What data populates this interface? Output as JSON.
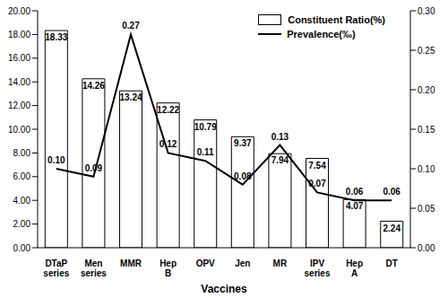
{
  "chart_data": {
    "type": "bar",
    "x_label": "Vaccines",
    "categories": [
      "DTaP series",
      "Men series",
      "MMR",
      "Hep B",
      "OPV",
      "Jen",
      "MR",
      "IPV series",
      "Hep A",
      "DT"
    ],
    "series": [
      {
        "name": "Constituent Ratio(%)",
        "type": "bar",
        "color": "#ffffff",
        "values": [
          18.33,
          14.26,
          13.24,
          12.22,
          10.79,
          9.37,
          7.94,
          7.54,
          4.07,
          2.24
        ]
      },
      {
        "name": "Prevalence(‰)",
        "type": "line",
        "axis": "y2",
        "color": "#000000",
        "marker": "none",
        "line_style": "solid",
        "values": [
          0.1,
          0.09,
          0.27,
          0.12,
          0.11,
          0.08,
          0.13,
          0.07,
          0.06,
          0.06
        ],
        "value_labels": [
          "0.10",
          "0.09",
          "0.27",
          "0.12",
          "0.11",
          "0.08",
          "0.13",
          "0.07",
          "0.06",
          "0.06"
        ]
      }
    ],
    "ylim": [
      0,
      20
    ],
    "yticks": [
      {
        "value": 0,
        "label": "0.00"
      },
      {
        "value": 2,
        "label": "2.00"
      },
      {
        "value": 4,
        "label": "4.00"
      },
      {
        "value": 6,
        "label": "6.00"
      },
      {
        "value": 8,
        "label": "8.00"
      },
      {
        "value": 10,
        "label": "10.00"
      },
      {
        "value": 12,
        "label": "12.00"
      },
      {
        "value": 14,
        "label": "14.00"
      },
      {
        "value": 16,
        "label": "16.00"
      },
      {
        "value": 18,
        "label": "18.00"
      },
      {
        "value": 20,
        "label": "20.00"
      }
    ],
    "y2lim": [
      0,
      0.3
    ],
    "y2ticks": [
      {
        "value": 0,
        "label": "0.00"
      },
      {
        "value": 0.05,
        "label": "0.05"
      },
      {
        "value": 0.1,
        "label": "0.10"
      },
      {
        "value": 0.15,
        "label": "0.15"
      },
      {
        "value": 0.2,
        "label": "0.20"
      },
      {
        "value": 0.25,
        "label": "0.25"
      },
      {
        "value": 0.3,
        "label": "0.30"
      }
    ],
    "data_labels": true,
    "legend": "upper right",
    "grid": false
  }
}
